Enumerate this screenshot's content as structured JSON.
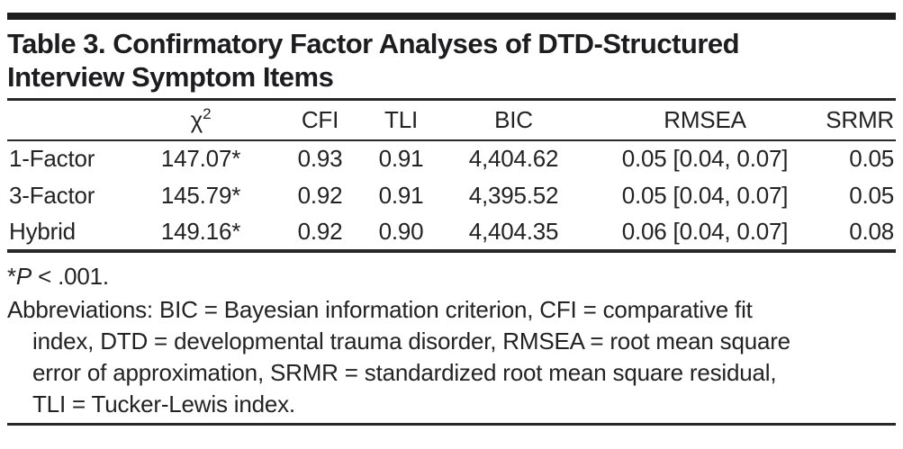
{
  "title": {
    "line1": "Table 3. Confirmatory Factor Analyses of DTD-Structured",
    "line2": "Interview Symptom Items"
  },
  "table": {
    "header": {
      "row_label": "",
      "chi_base": "χ",
      "chi_sup": "2",
      "cfi": "CFI",
      "tli": "TLI",
      "bic": "BIC",
      "rmsea": "RMSEA",
      "srmr": "SRMR"
    },
    "rows": [
      {
        "label": "1-Factor",
        "chi2": "147.07*",
        "cfi": "0.93",
        "tli": "0.91",
        "bic": "4,404.62",
        "rmsea": "0.05 [0.04, 0.07]",
        "srmr": "0.05"
      },
      {
        "label": "3-Factor",
        "chi2": "145.79*",
        "cfi": "0.92",
        "tli": "0.91",
        "bic": "4,395.52",
        "rmsea": "0.05 [0.04, 0.07]",
        "srmr": "0.05"
      },
      {
        "label": "Hybrid",
        "chi2": "149.16*",
        "cfi": "0.92",
        "tli": "0.90",
        "bic": "4,404.35",
        "rmsea": "0.06 [0.04, 0.07]",
        "srmr": "0.08"
      }
    ]
  },
  "footnotes": {
    "significance": {
      "star": "*",
      "p": "P",
      "rest": " < .001."
    },
    "abbreviations": {
      "lines": [
        "Abbreviations: BIC = Bayesian information criterion, CFI = comparative fit",
        "index, DTD = developmental trauma disorder, RMSEA = root mean square",
        "error of approximation, SRMR = standardized root mean square residual,",
        "TLI = Tucker-Lewis index."
      ]
    }
  },
  "colors": {
    "background": "#ffffff",
    "text": "#232323",
    "rule": "#282828",
    "top_bar": "#1e1e1e"
  }
}
